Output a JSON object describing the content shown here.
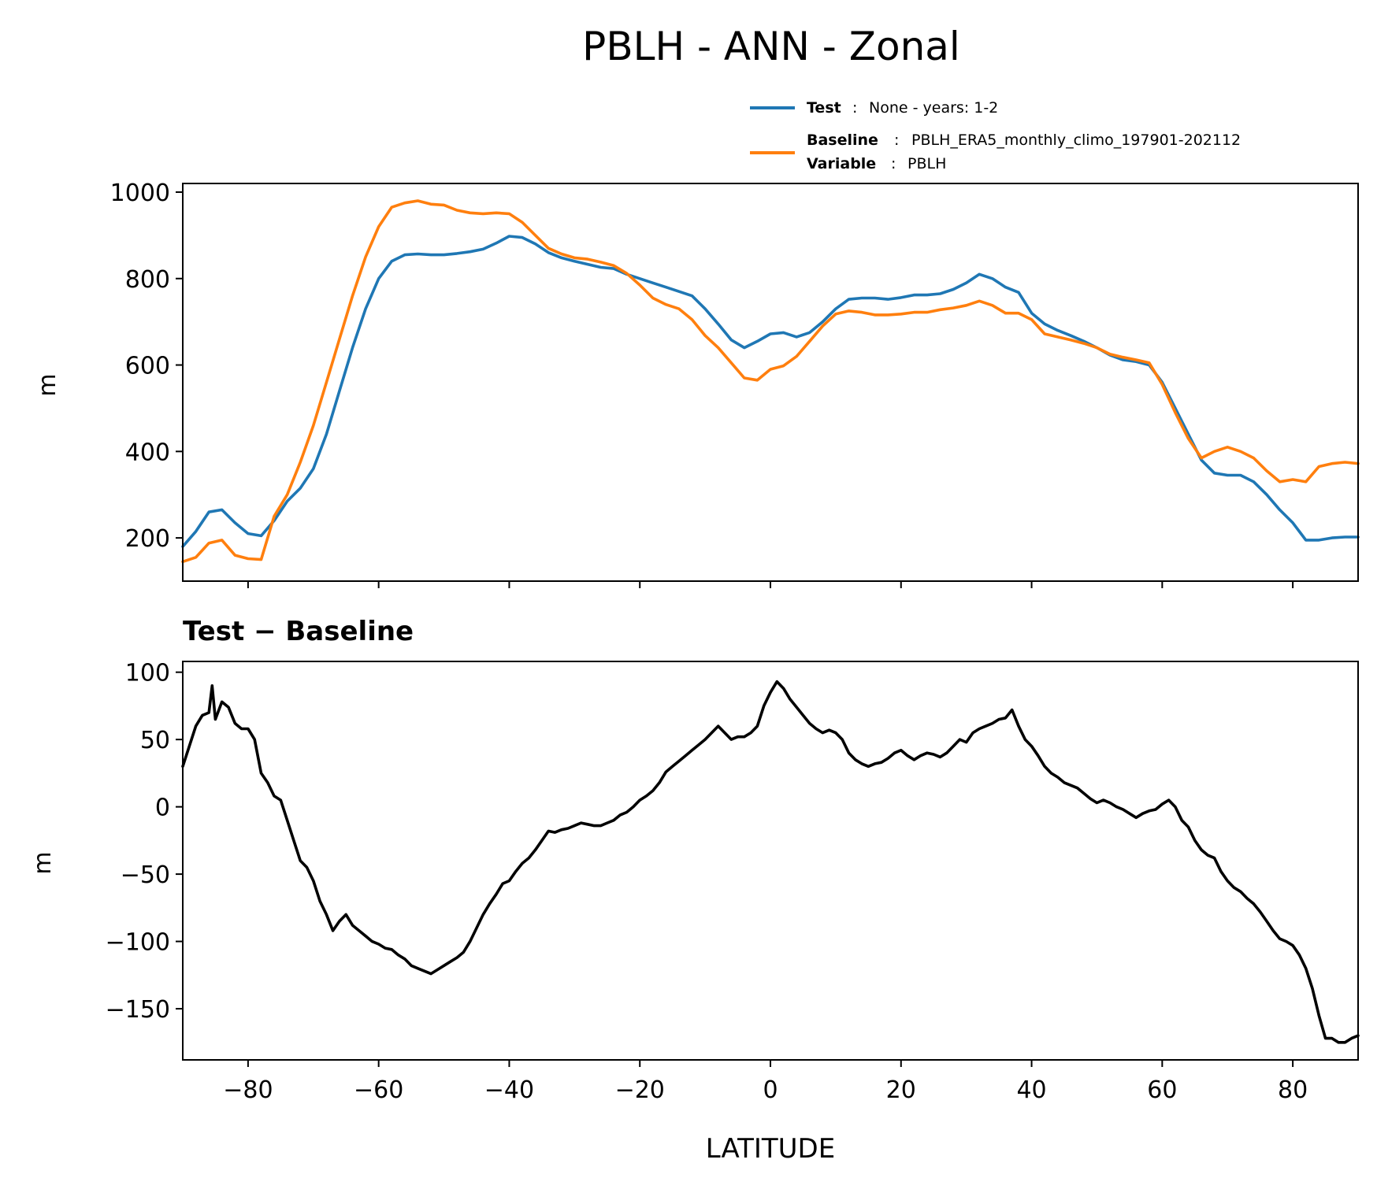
{
  "title": "PBLH - ANN - Zonal",
  "legend": {
    "entries": [
      {
        "key": "Test",
        "value": "None - years: 1-2",
        "color": "#1f77b4"
      },
      {
        "key": "Baseline",
        "value": "PBLH_ERA5_monthly_climo_197901-202112",
        "color": "#ff7f0e"
      },
      {
        "key": "Variable",
        "value": "PBLH"
      }
    ],
    "separator": ":",
    "placement": "top-right, above upper panel"
  },
  "colors": {
    "test": "#1f77b4",
    "baseline": "#ff7f0e",
    "diff": "#000000"
  },
  "chart_data": [
    {
      "type": "line",
      "title": "",
      "xlabel": "",
      "ylabel": "m",
      "xlim": [
        -90,
        90
      ],
      "ylim": [
        100,
        1020
      ],
      "xticks": [
        -80,
        -60,
        -40,
        -20,
        0,
        20,
        40,
        60,
        80
      ],
      "xtick_labels_shown": false,
      "yticks": [
        200,
        400,
        600,
        800,
        1000
      ],
      "ytick_labels": [
        "200",
        "400",
        "600",
        "800",
        "1000"
      ],
      "grid": false,
      "series": [
        {
          "name": "Test",
          "color": "#1f77b4",
          "x": [
            -90,
            -88,
            -86,
            -84,
            -82,
            -80,
            -78,
            -76,
            -74,
            -72,
            -70,
            -68,
            -66,
            -64,
            -62,
            -60,
            -58,
            -56,
            -54,
            -52,
            -50,
            -48,
            -46,
            -44,
            -42,
            -40,
            -38,
            -36,
            -34,
            -32,
            -30,
            -28,
            -26,
            -24,
            -22,
            -20,
            -18,
            -16,
            -14,
            -12,
            -10,
            -8,
            -6,
            -4,
            -2,
            0,
            2,
            4,
            6,
            8,
            10,
            12,
            14,
            16,
            18,
            20,
            22,
            24,
            26,
            28,
            30,
            32,
            34,
            36,
            38,
            40,
            42,
            44,
            46,
            48,
            50,
            52,
            54,
            56,
            58,
            60,
            62,
            64,
            66,
            68,
            70,
            72,
            74,
            76,
            78,
            80,
            82,
            84,
            86,
            88,
            90
          ],
          "y": [
            180,
            215,
            260,
            265,
            235,
            210,
            205,
            240,
            285,
            315,
            360,
            440,
            540,
            640,
            730,
            800,
            840,
            855,
            857,
            855,
            855,
            858,
            862,
            868,
            882,
            898,
            895,
            880,
            860,
            848,
            840,
            833,
            826,
            823,
            810,
            800,
            790,
            780,
            770,
            760,
            730,
            695,
            658,
            640,
            655,
            672,
            675,
            665,
            675,
            700,
            730,
            752,
            755,
            755,
            752,
            756,
            762,
            762,
            765,
            775,
            790,
            810,
            800,
            780,
            768,
            720,
            695,
            680,
            668,
            655,
            640,
            623,
            612,
            608,
            600,
            560,
            500,
            440,
            380,
            350,
            345,
            345,
            330,
            300,
            265,
            235,
            195,
            195,
            200,
            202,
            202
          ]
        },
        {
          "name": "Baseline",
          "color": "#ff7f0e",
          "x": [
            -90,
            -88,
            -86,
            -84,
            -82,
            -80,
            -78,
            -76,
            -74,
            -72,
            -70,
            -68,
            -66,
            -64,
            -62,
            -60,
            -58,
            -56,
            -54,
            -52,
            -50,
            -48,
            -46,
            -44,
            -42,
            -40,
            -38,
            -36,
            -34,
            -32,
            -30,
            -28,
            -26,
            -24,
            -22,
            -20,
            -18,
            -16,
            -14,
            -12,
            -10,
            -8,
            -6,
            -4,
            -2,
            0,
            2,
            4,
            6,
            8,
            10,
            12,
            14,
            16,
            18,
            20,
            22,
            24,
            26,
            28,
            30,
            32,
            34,
            36,
            38,
            40,
            42,
            44,
            46,
            48,
            50,
            52,
            54,
            56,
            58,
            60,
            62,
            64,
            66,
            68,
            70,
            72,
            74,
            76,
            78,
            80,
            82,
            84,
            86,
            88,
            90
          ],
          "y": [
            145,
            155,
            188,
            195,
            160,
            152,
            150,
            250,
            300,
            375,
            460,
            560,
            660,
            760,
            850,
            920,
            965,
            975,
            980,
            972,
            970,
            958,
            952,
            950,
            952,
            950,
            930,
            900,
            870,
            857,
            848,
            845,
            838,
            830,
            812,
            785,
            755,
            740,
            730,
            705,
            668,
            640,
            605,
            570,
            565,
            590,
            598,
            620,
            655,
            690,
            718,
            725,
            722,
            716,
            716,
            718,
            722,
            722,
            728,
            732,
            738,
            748,
            738,
            720,
            720,
            705,
            672,
            665,
            658,
            650,
            640,
            625,
            618,
            612,
            605,
            555,
            490,
            430,
            385,
            400,
            410,
            400,
            385,
            355,
            330,
            335,
            330,
            365,
            372,
            375,
            372
          ]
        }
      ]
    },
    {
      "type": "line",
      "title": "Test − Baseline",
      "xlabel": "LATITUDE",
      "ylabel": "m",
      "xlim": [
        -90,
        90
      ],
      "ylim": [
        -188,
        108
      ],
      "xticks": [
        -80,
        -60,
        -40,
        -20,
        0,
        20,
        40,
        60,
        80
      ],
      "xtick_labels": [
        "−80",
        "−60",
        "−40",
        "−20",
        "0",
        "20",
        "40",
        "60",
        "80"
      ],
      "yticks": [
        -150,
        -100,
        -50,
        0,
        50,
        100
      ],
      "ytick_labels": [
        "−150",
        "−100",
        "−50",
        "0",
        "50",
        "100"
      ],
      "grid": false,
      "series": [
        {
          "name": "Test − Baseline",
          "color": "#000000",
          "x": [
            -90,
            -89,
            -88,
            -87,
            -86,
            -85.5,
            -85,
            -84,
            -83,
            -82,
            -81,
            -80,
            -79,
            -78,
            -77,
            -76,
            -75,
            -74,
            -73,
            -72,
            -71,
            -70,
            -69,
            -68,
            -67,
            -66,
            -65,
            -64,
            -63,
            -62,
            -61,
            -60,
            -59,
            -58,
            -57,
            -56,
            -55,
            -54,
            -53,
            -52,
            -51,
            -50,
            -49,
            -48,
            -47,
            -46,
            -45,
            -44,
            -43,
            -42,
            -41,
            -40,
            -39,
            -38,
            -37,
            -36,
            -35,
            -34,
            -33,
            -32,
            -31,
            -30,
            -29,
            -28,
            -27,
            -26,
            -25,
            -24,
            -23,
            -22,
            -21,
            -20,
            -19,
            -18,
            -17,
            -16,
            -15,
            -14,
            -13,
            -12,
            -11,
            -10,
            -9,
            -8,
            -7,
            -6,
            -5,
            -4,
            -3,
            -2,
            -1,
            0,
            1,
            2,
            3,
            4,
            5,
            6,
            7,
            8,
            9,
            10,
            11,
            12,
            13,
            14,
            15,
            16,
            17,
            18,
            19,
            20,
            21,
            22,
            23,
            24,
            25,
            26,
            27,
            28,
            29,
            30,
            31,
            32,
            33,
            34,
            35,
            36,
            37,
            38,
            39,
            40,
            41,
            42,
            43,
            44,
            45,
            46,
            47,
            48,
            49,
            50,
            51,
            52,
            53,
            54,
            55,
            56,
            57,
            58,
            59,
            60,
            61,
            62,
            63,
            64,
            65,
            66,
            67,
            68,
            69,
            70,
            71,
            72,
            73,
            74,
            75,
            76,
            77,
            78,
            79,
            80,
            81,
            82,
            83,
            84,
            85,
            86,
            87,
            88,
            89,
            90
          ],
          "y": [
            30,
            45,
            60,
            68,
            70,
            90,
            65,
            78,
            74,
            62,
            58,
            58,
            50,
            25,
            18,
            8,
            5,
            -10,
            -25,
            -40,
            -45,
            -55,
            -70,
            -80,
            -92,
            -85,
            -80,
            -88,
            -92,
            -96,
            -100,
            -102,
            -105,
            -106,
            -110,
            -113,
            -118,
            -120,
            -122,
            -124,
            -121,
            -118,
            -115,
            -112,
            -108,
            -100,
            -90,
            -80,
            -72,
            -65,
            -57,
            -55,
            -48,
            -42,
            -38,
            -32,
            -25,
            -18,
            -19,
            -17,
            -16,
            -14,
            -12,
            -13,
            -14,
            -14,
            -12,
            -10,
            -6,
            -4,
            0,
            5,
            8,
            12,
            18,
            26,
            30,
            34,
            38,
            42,
            46,
            50,
            55,
            60,
            55,
            50,
            52,
            52,
            55,
            60,
            75,
            85,
            93,
            88,
            80,
            74,
            68,
            62,
            58,
            55,
            57,
            55,
            50,
            40,
            35,
            32,
            30,
            32,
            33,
            36,
            40,
            42,
            38,
            35,
            38,
            40,
            39,
            37,
            40,
            45,
            50,
            48,
            55,
            58,
            60,
            62,
            65,
            66,
            72,
            60,
            50,
            45,
            38,
            30,
            25,
            22,
            18,
            16,
            14,
            10,
            6,
            3,
            5,
            3,
            0,
            -2,
            -5,
            -8,
            -5,
            -3,
            -2,
            2,
            5,
            0,
            -10,
            -15,
            -25,
            -32,
            -36,
            -38,
            -48,
            -55,
            -60,
            -63,
            -68,
            -72,
            -78,
            -85,
            -92,
            -98,
            -100,
            -103,
            -110,
            -120,
            -135,
            -155,
            -172,
            -172,
            -175,
            -175,
            -172,
            -170
          ]
        }
      ]
    }
  ]
}
